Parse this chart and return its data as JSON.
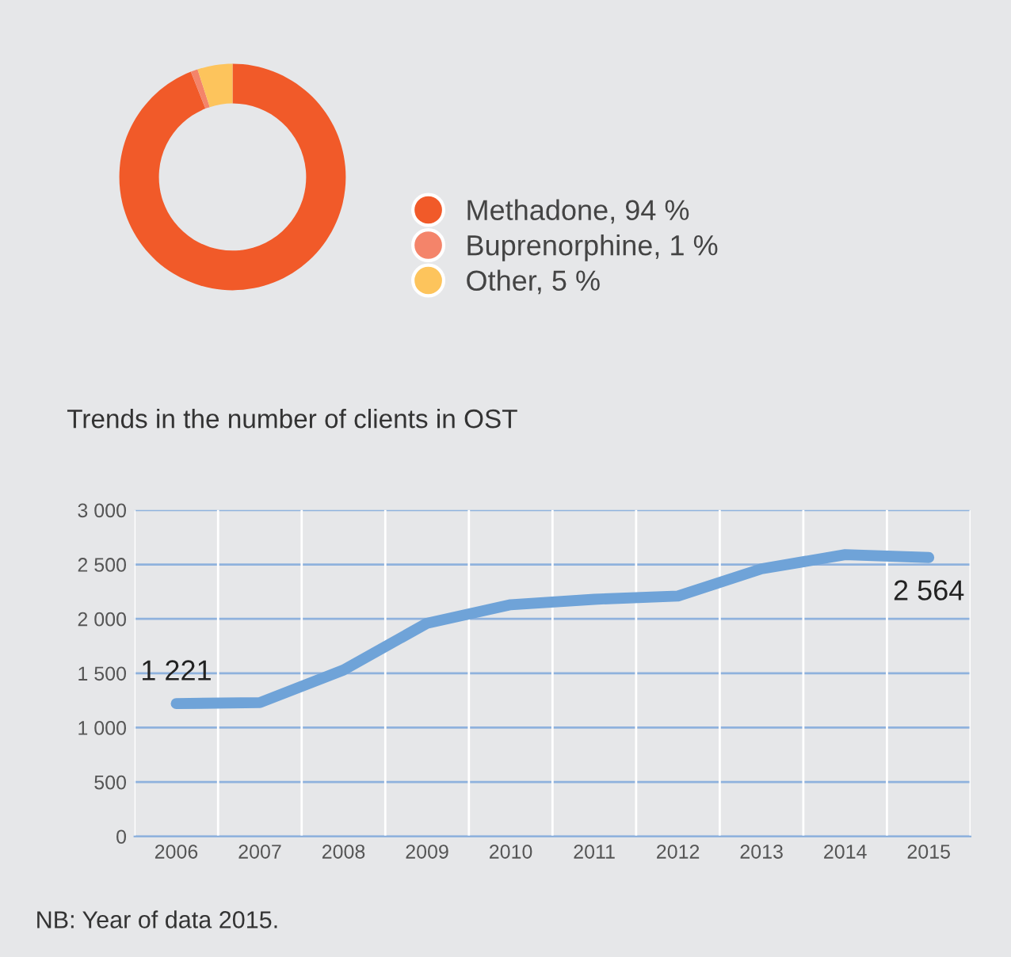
{
  "chart_data": [
    {
      "type": "donut",
      "categories": [
        "Methadone, 94 %",
        "Buprenorphine, 1 %",
        "Other, 5 %"
      ],
      "values": [
        94,
        1,
        5
      ],
      "colors": [
        "#f15a29",
        "#f4846a",
        "#fdc45c"
      ],
      "legend": "right"
    },
    {
      "type": "line",
      "title": "Trends in the number of clients in OST",
      "categories": [
        "2006",
        "2007",
        "2008",
        "2009",
        "2010",
        "2011",
        "2012",
        "2013",
        "2014",
        "2015"
      ],
      "series": [
        {
          "color": "#6fa3d8",
          "values": [
            1221,
            1230,
            1530,
            1960,
            2130,
            2180,
            2210,
            2460,
            2590,
            2564
          ],
          "value_labels": [
            "1 221",
            null,
            null,
            null,
            null,
            null,
            null,
            null,
            null,
            "2 564"
          ]
        }
      ],
      "ylim": [
        0,
        3000
      ],
      "yticks": [
        {
          "value": 0,
          "label": "0"
        },
        {
          "value": 500,
          "label": "500"
        },
        {
          "value": 1000,
          "label": "1 000"
        },
        {
          "value": 1500,
          "label": "1 500"
        },
        {
          "value": 2000,
          "label": "2 000"
        },
        {
          "value": 2500,
          "label": "2 500"
        },
        {
          "value": 3000,
          "label": "3 000"
        }
      ],
      "grid": true,
      "legend": false,
      "marker": "none",
      "line_style": "solid",
      "annotations": [
        "NB: Year of data 2015."
      ]
    }
  ]
}
